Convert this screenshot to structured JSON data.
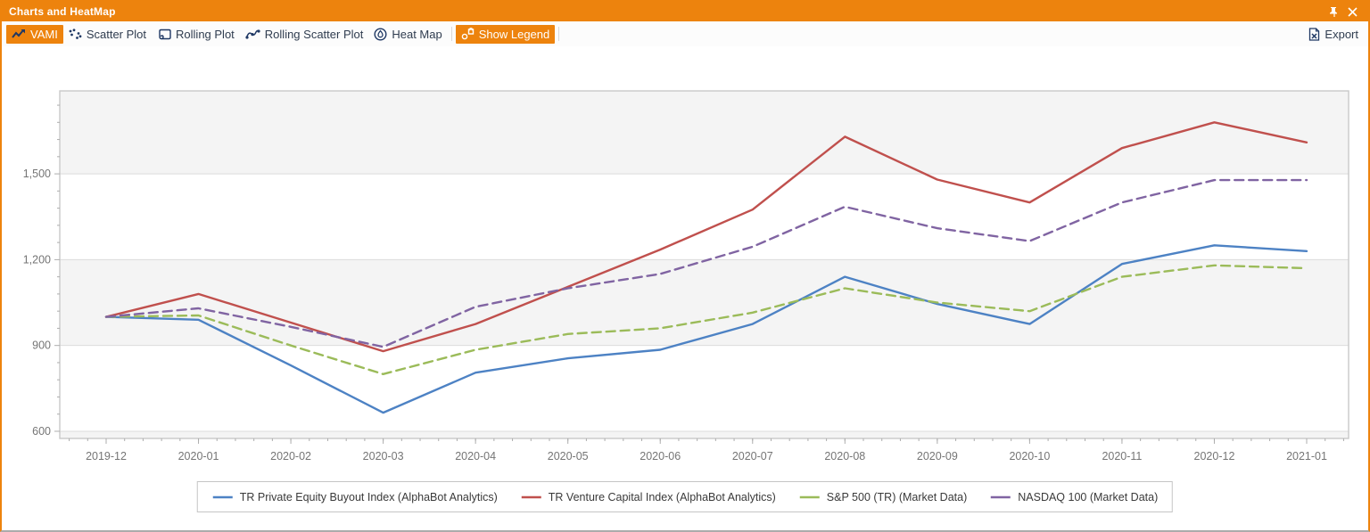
{
  "window": {
    "title": "Charts and HeatMap"
  },
  "titlebar": {
    "icons": [
      "pin-icon",
      "close-icon"
    ]
  },
  "toolbar": {
    "items": [
      {
        "label": "VAMI",
        "icon": "line-chart-icon",
        "active": true
      },
      {
        "label": "Scatter Plot",
        "icon": "scatter-plot-icon",
        "active": false
      },
      {
        "label": "Rolling Plot",
        "icon": "rolling-plot-icon",
        "active": false
      },
      {
        "label": "Rolling Scatter Plot",
        "icon": "rolling-scatter-plot-icon",
        "active": false
      },
      {
        "label": "Heat Map",
        "icon": "heat-map-icon",
        "active": false
      },
      {
        "label": "Show Legend",
        "icon": "show-legend-icon",
        "active": true
      }
    ],
    "export_label": "Export"
  },
  "chart_data": {
    "type": "line",
    "title": "",
    "xlabel": "",
    "ylabel": "",
    "x": [
      "2019-12",
      "2020-01",
      "2020-02",
      "2020-03",
      "2020-04",
      "2020-05",
      "2020-06",
      "2020-07",
      "2020-08",
      "2020-09",
      "2020-10",
      "2020-11",
      "2020-12",
      "2021-01"
    ],
    "series": [
      {
        "name": "TR Private Equity Buyout Index (AlphaBot Analytics)",
        "color": "#4D82C4",
        "dash": "solid",
        "values": [
          1000,
          990,
          830,
          665,
          805,
          855,
          885,
          975,
          1140,
          1045,
          975,
          1185,
          1250,
          1230
        ]
      },
      {
        "name": "TR Venture Capital Index (AlphaBot Analytics)",
        "color": "#C0504D",
        "dash": "solid",
        "values": [
          1000,
          1080,
          980,
          880,
          975,
          1105,
          1235,
          1375,
          1630,
          1480,
          1400,
          1590,
          1680,
          1610
        ]
      },
      {
        "name": "S&P 500 (TR) (Market Data)",
        "color": "#9BBB59",
        "dash": "dashed",
        "values": [
          1000,
          1005,
          900,
          800,
          885,
          940,
          960,
          1015,
          1100,
          1050,
          1020,
          1140,
          1180,
          1170
        ]
      },
      {
        "name": "NASDAQ 100 (Market Data)",
        "color": "#8064A2",
        "dash": "dashed",
        "values": [
          1000,
          1030,
          965,
          895,
          1035,
          1100,
          1150,
          1245,
          1385,
          1310,
          1265,
          1400,
          1478,
          1478
        ]
      }
    ],
    "y_ticks": [
      600,
      900,
      1200,
      1500
    ],
    "y_tick_labels": [
      "600",
      "900",
      "1,200",
      "1,500"
    ],
    "ylim": [
      575,
      1790
    ],
    "y_minor_step": 60,
    "grid": "horizontal-alternating-bands",
    "legend_position": "bottom-center",
    "colors": {
      "band_gray": "#F4F4F4",
      "grid_line": "#DCDCDC",
      "plot_border": "#C9C9C9",
      "tick": "#ADADAD",
      "axis_label": "#757575"
    }
  }
}
